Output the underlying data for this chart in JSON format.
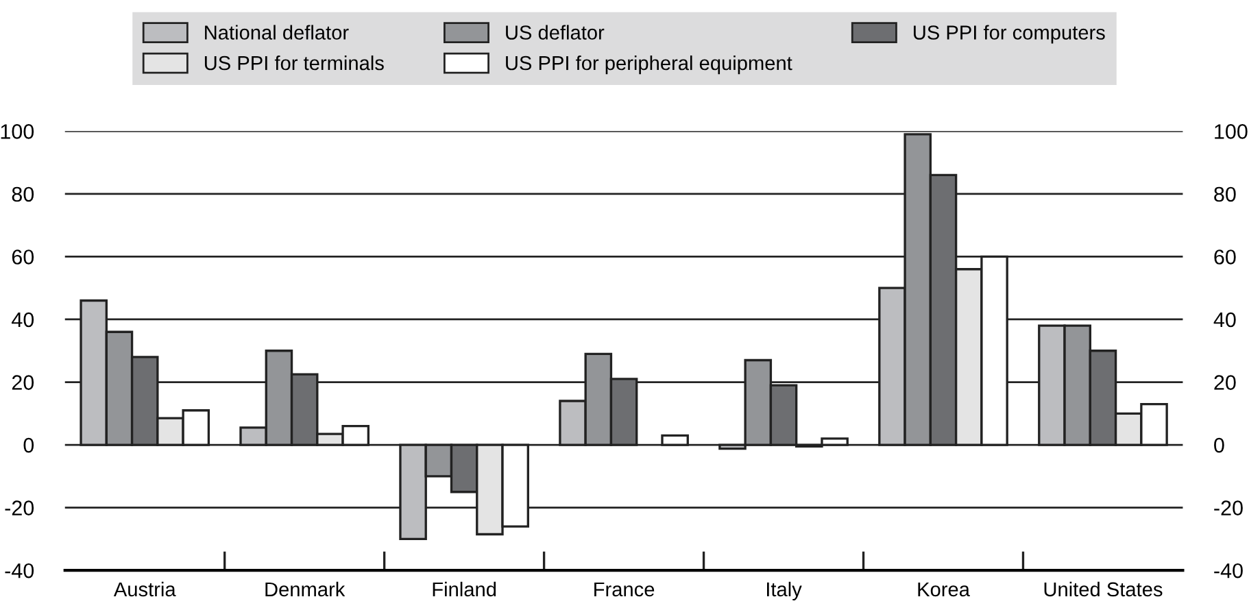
{
  "chart_data": {
    "type": "bar",
    "categories": [
      "Austria",
      "Denmark",
      "Finland",
      "France",
      "Italy",
      "Korea",
      "United States"
    ],
    "series": [
      {
        "name": "National deflator",
        "color": "#bcbdc0",
        "values": [
          46,
          5.5,
          -30,
          14,
          -1.2,
          50,
          38
        ]
      },
      {
        "name": "US deflator",
        "color": "#939598",
        "values": [
          36,
          30,
          -10,
          29,
          27,
          99,
          38
        ]
      },
      {
        "name": "US PPI for computers",
        "color": "#6d6e71",
        "values": [
          28,
          22.5,
          -15,
          21,
          19,
          86,
          30
        ]
      },
      {
        "name": "US PPI for terminals",
        "color": "#e4e4e4",
        "values": [
          8.5,
          3.5,
          -28.5,
          null,
          -0.5,
          56,
          10
        ]
      },
      {
        "name": "US PPI for peripheral equipment",
        "color": "#ffffff",
        "values": [
          11,
          6,
          -26,
          3,
          2,
          60,
          13
        ]
      }
    ],
    "ylim": [
      -40,
      100
    ],
    "yticks": [
      -40,
      -20,
      0,
      20,
      40,
      60,
      80,
      100
    ],
    "y2lim": [
      -40,
      100
    ],
    "y2ticks": [
      -40,
      -20,
      0,
      20,
      40,
      60,
      80,
      100
    ],
    "grid": "y",
    "legend": "top"
  }
}
